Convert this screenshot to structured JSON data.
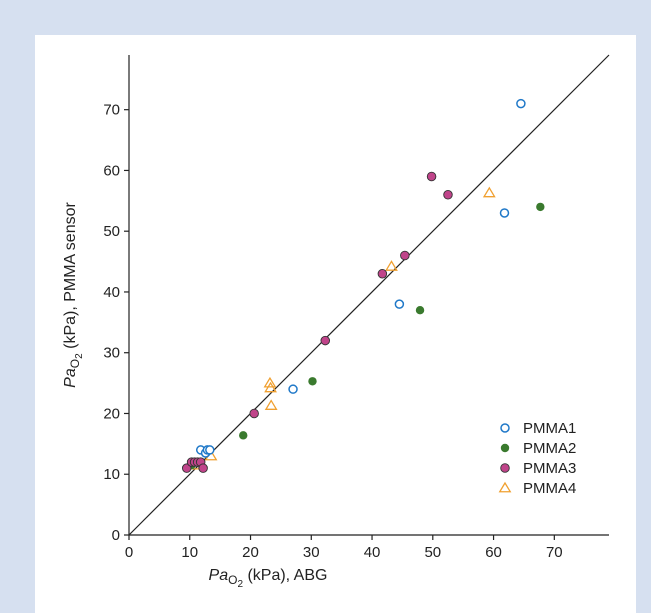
{
  "chart_data": {
    "type": "scatter",
    "xlabel": {
      "italic": "Pa",
      "sub": "O",
      "subsub": "2",
      "rest": " (kPa), ABG"
    },
    "ylabel": {
      "italic": "Pa",
      "sub": "O",
      "subsub": "2",
      "rest": " (kPa), PMMA sensor"
    },
    "xlim": [
      0,
      79
    ],
    "ylim": [
      0,
      79
    ],
    "xticks": [
      0,
      10,
      20,
      30,
      40,
      50,
      60,
      70
    ],
    "yticks": [
      0,
      10,
      20,
      30,
      40,
      50,
      60,
      70
    ],
    "identity_line": true,
    "grid": false,
    "legend_position": "bottom-right",
    "series": [
      {
        "name": "PMMA1",
        "marker": "open-circle",
        "color": "#1f78c8",
        "points": [
          [
            11.8,
            14
          ],
          [
            12.6,
            13.5
          ],
          [
            12.9,
            14
          ],
          [
            13.3,
            14
          ],
          [
            27,
            24
          ],
          [
            44.5,
            38
          ],
          [
            61.8,
            53
          ],
          [
            64.5,
            71
          ]
        ]
      },
      {
        "name": "PMMA2",
        "marker": "filled-circle",
        "color": "#3a7a2e",
        "points": [
          [
            10.3,
            11.5
          ],
          [
            18.8,
            16.4
          ],
          [
            30.2,
            25.3
          ],
          [
            47.9,
            37
          ],
          [
            67.7,
            54
          ]
        ]
      },
      {
        "name": "PMMA3",
        "marker": "filled-circle-outlined",
        "color": "#c0448a",
        "points": [
          [
            9.5,
            11
          ],
          [
            10.3,
            12
          ],
          [
            10.8,
            12
          ],
          [
            11.3,
            12
          ],
          [
            11.8,
            12
          ],
          [
            12.2,
            11
          ],
          [
            20.6,
            20
          ],
          [
            32.3,
            32
          ],
          [
            41.7,
            43
          ],
          [
            45.4,
            46
          ],
          [
            49.8,
            59
          ],
          [
            52.5,
            56
          ]
        ]
      },
      {
        "name": "PMMA4",
        "marker": "open-triangle",
        "color": "#f0a030",
        "points": [
          [
            10.8,
            11.5
          ],
          [
            13.5,
            13
          ],
          [
            23.2,
            25
          ],
          [
            23.3,
            24.2
          ],
          [
            23.4,
            21.3
          ],
          [
            43.2,
            44.2
          ],
          [
            59.3,
            56.3
          ]
        ]
      }
    ]
  }
}
